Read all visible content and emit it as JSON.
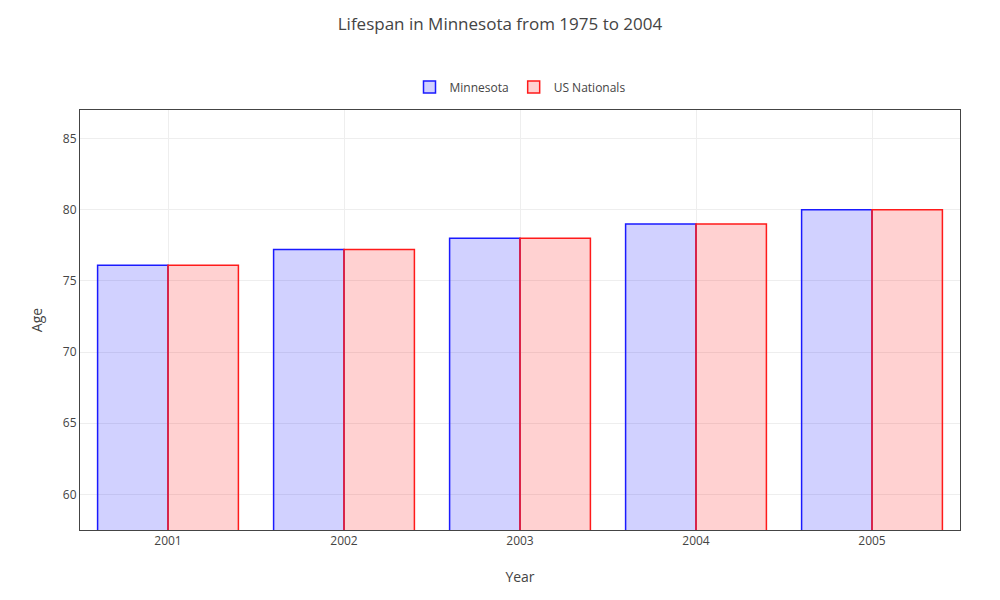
{
  "chart_data": {
    "type": "bar",
    "title": "Lifespan in Minnesota from 1975 to 2004",
    "xlabel": "Year",
    "ylabel": "Age",
    "categories": [
      "2001",
      "2002",
      "2003",
      "2004",
      "2005"
    ],
    "series": [
      {
        "name": "Minnesota",
        "color": "#1a1aff",
        "values": [
          76.1,
          77.2,
          78.0,
          79.0,
          80.0
        ]
      },
      {
        "name": "US Nationals",
        "color": "#ff1a1a",
        "values": [
          76.1,
          77.2,
          78.0,
          79.0,
          80.0
        ]
      }
    ],
    "ylim": [
      57.5,
      87
    ],
    "yticks": [
      60,
      65,
      70,
      75,
      80,
      85
    ],
    "grid": true,
    "legend": "top"
  }
}
